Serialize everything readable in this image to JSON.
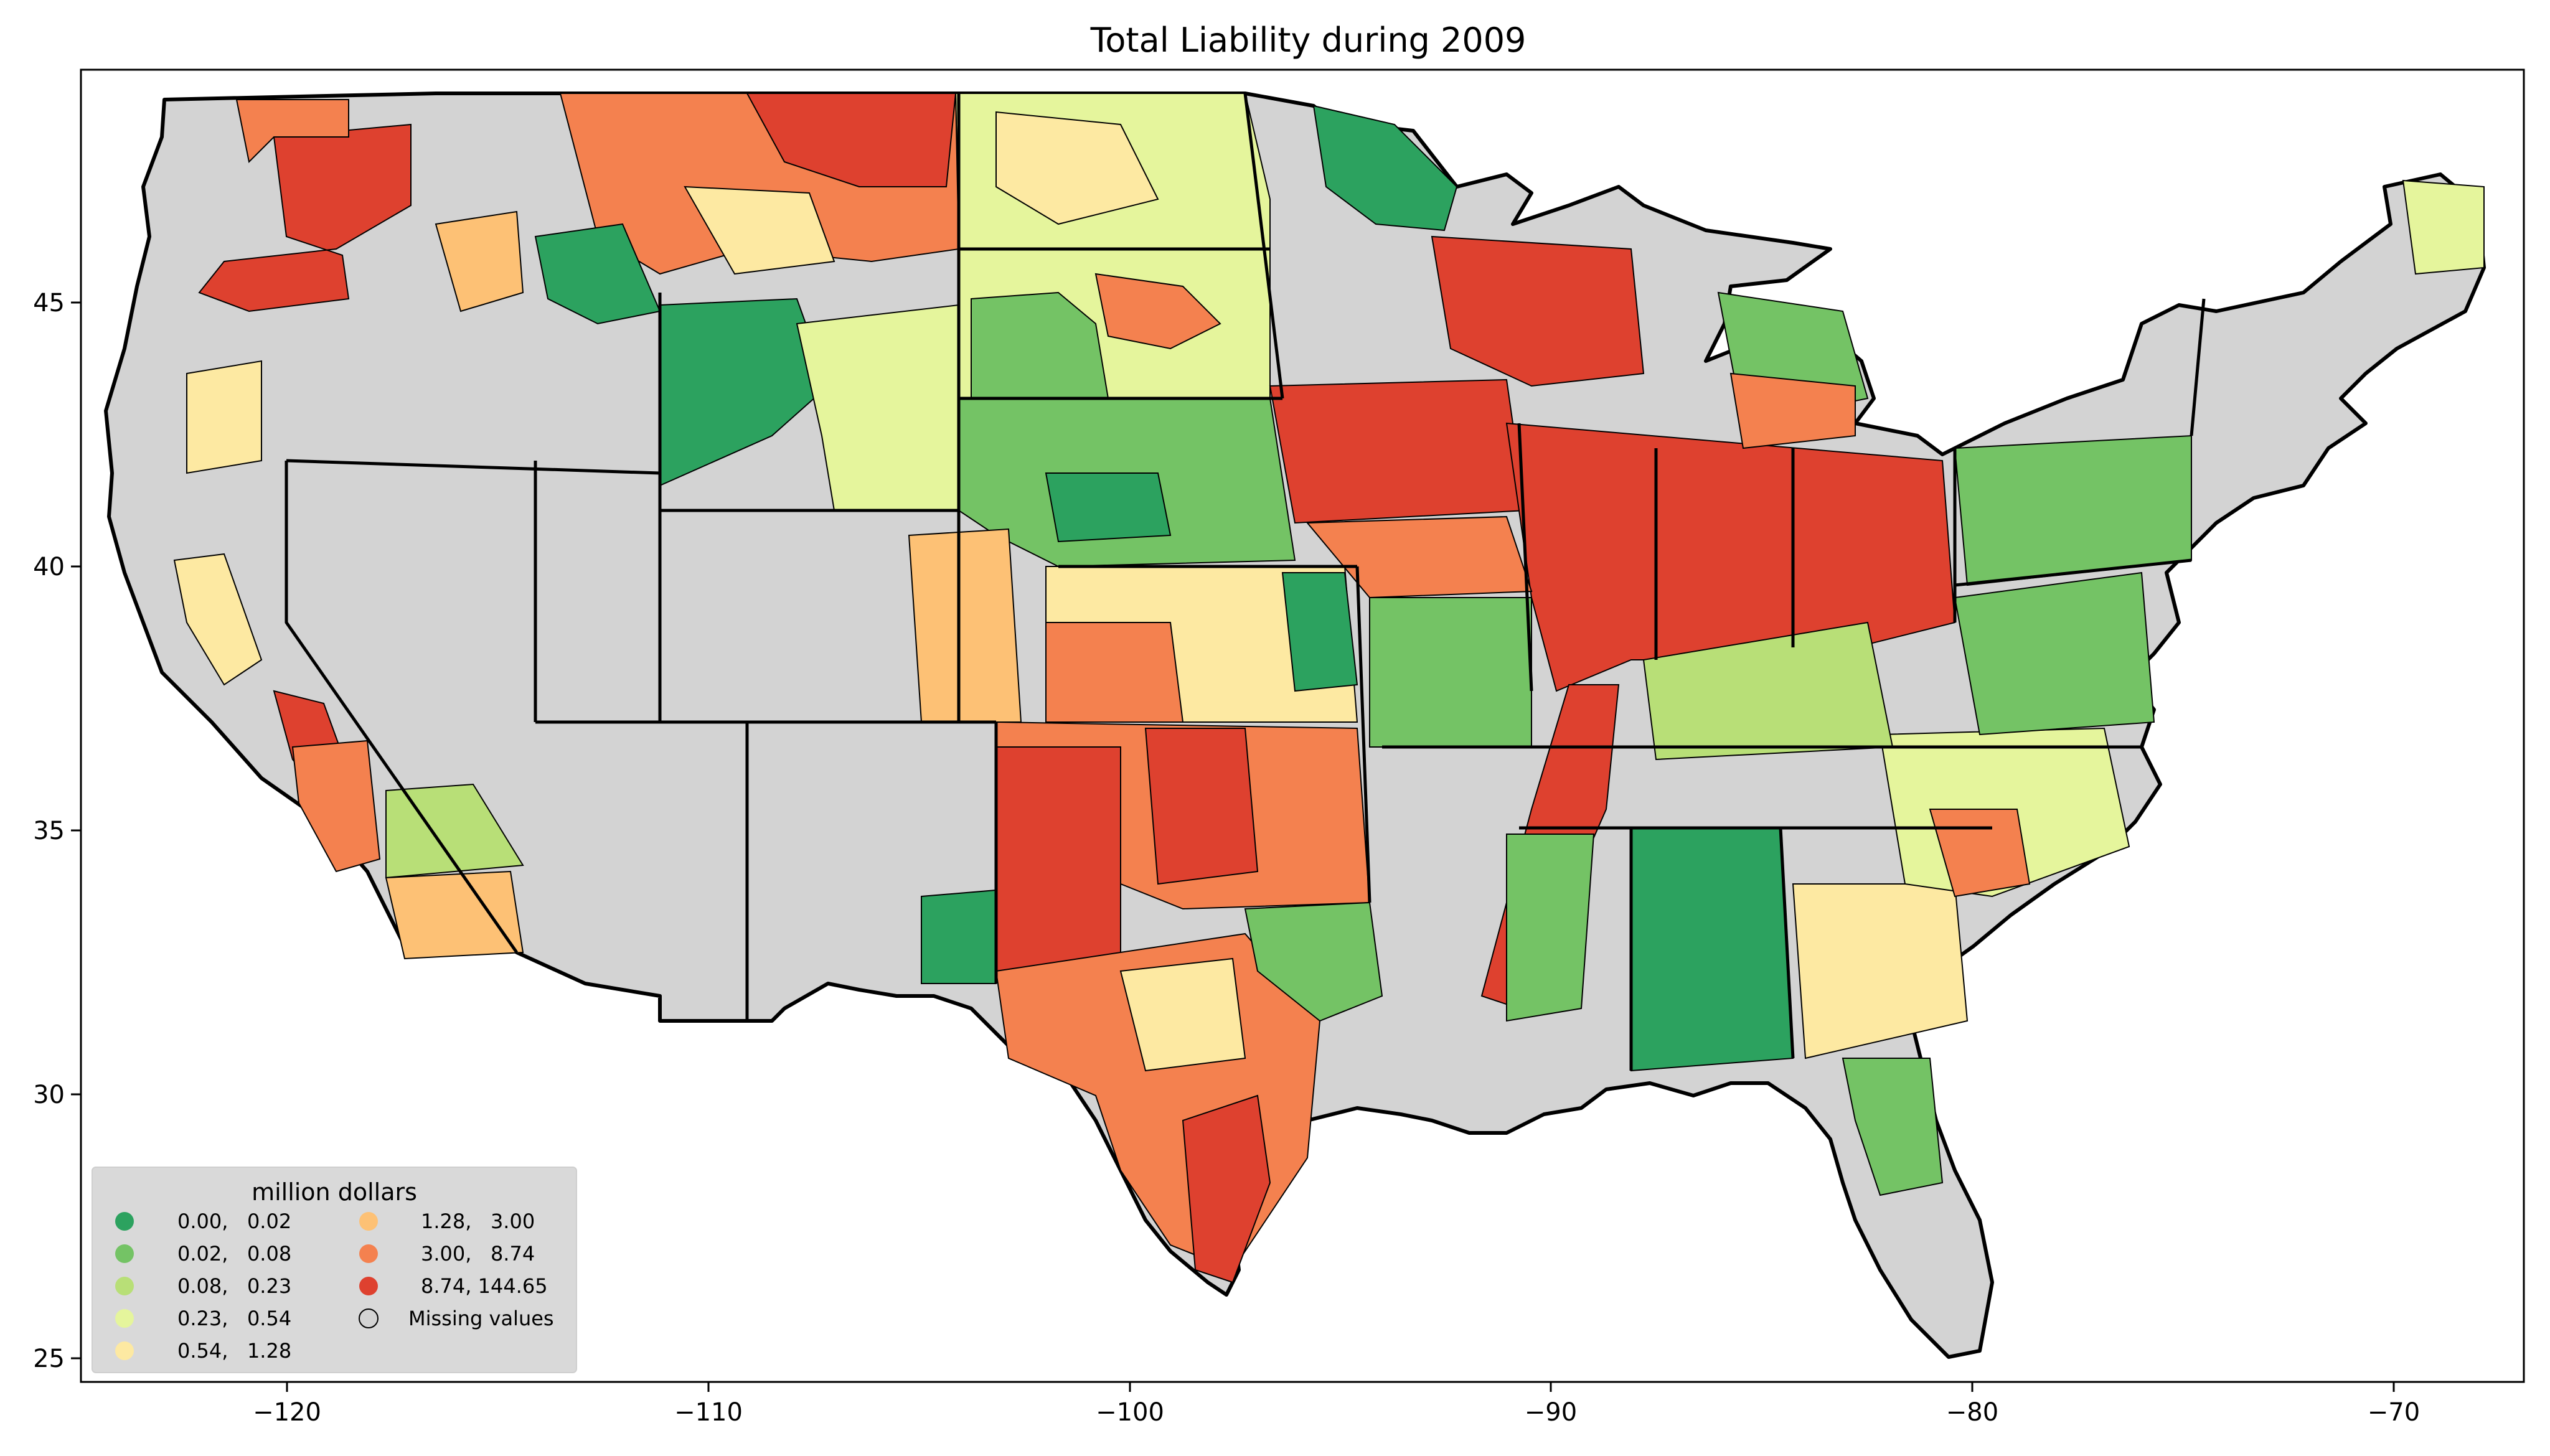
{
  "title": "Total Liability during 2009",
  "axes": {
    "x_ticks": [
      "−120",
      "−110",
      "−100",
      "−90",
      "−80",
      "−70"
    ],
    "y_ticks": [
      "45",
      "40",
      "35",
      "30",
      "25"
    ]
  },
  "legend": {
    "title": "million dollars",
    "items": [
      {
        "label": "0.00,   0.02",
        "color": "#2ca25f"
      },
      {
        "label": "0.02,   0.08",
        "color": "#74c365"
      },
      {
        "label": "0.08,   0.23",
        "color": "#b8df77"
      },
      {
        "label": "0.23,   0.54",
        "color": "#e5f59c"
      },
      {
        "label": "0.54,   1.28",
        "color": "#fde9a2"
      },
      {
        "label": "1.28,   3.00",
        "color": "#fdc175"
      },
      {
        "label": "3.00,   8.74",
        "color": "#f4814f"
      },
      {
        "label": "8.74, 144.65",
        "color": "#de412f"
      },
      {
        "label": "Missing values",
        "color": "#d3d3d3"
      }
    ]
  },
  "chart_data": {
    "type": "choropleth",
    "title": "Total Liability during 2009",
    "xlabel": "",
    "ylabel": "",
    "xlim": [
      -125,
      -66.5
    ],
    "ylim": [
      24.5,
      49.5
    ],
    "grid": false,
    "legend_position": "bottom-left",
    "bins_million_dollars": [
      [
        0.0,
        0.02
      ],
      [
        0.02,
        0.08
      ],
      [
        0.08,
        0.23
      ],
      [
        0.23,
        0.54
      ],
      [
        0.54,
        1.28
      ],
      [
        1.28,
        3.0
      ],
      [
        3.0,
        8.74
      ],
      [
        8.74,
        144.65
      ]
    ]
  }
}
